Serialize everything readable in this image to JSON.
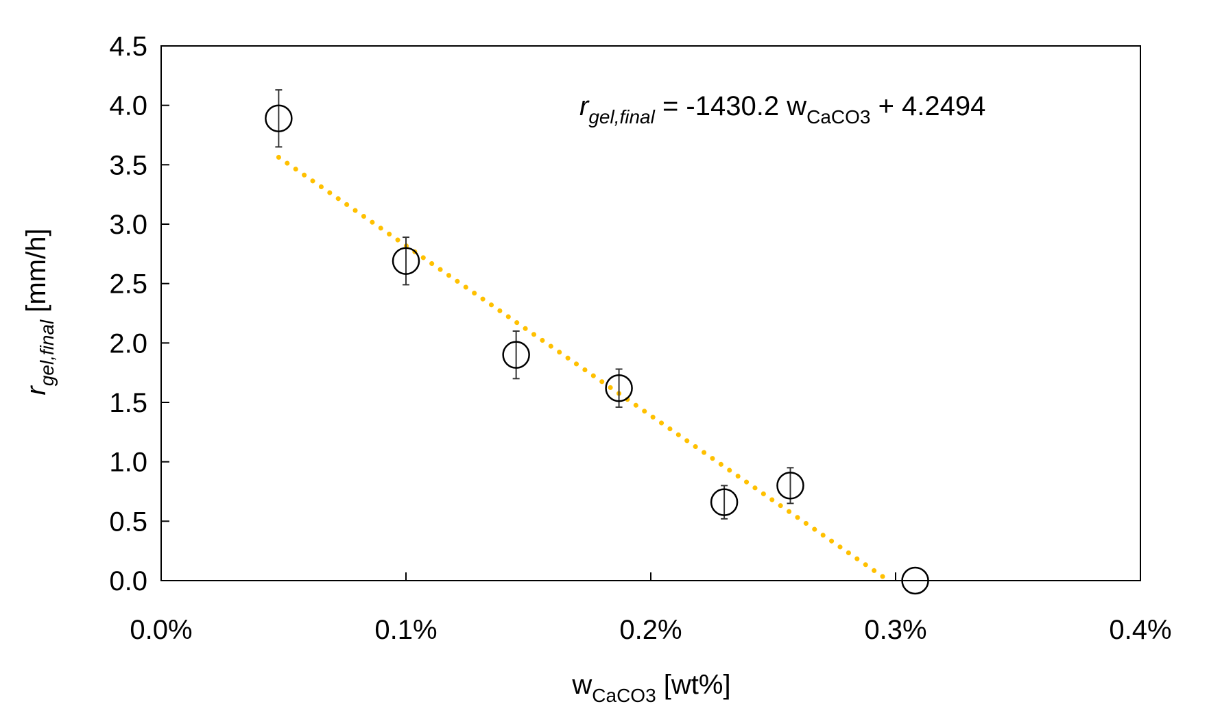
{
  "chart_data": {
    "type": "scatter",
    "xlim": [
      0,
      0.004
    ],
    "ylim": [
      0,
      4.5
    ],
    "x_ticks": [
      0,
      0.001,
      0.002,
      0.003,
      0.004
    ],
    "x_tick_labels": [
      "0.0%",
      "0.1%",
      "0.2%",
      "0.3%",
      "0.4%"
    ],
    "y_ticks": [
      0,
      0.5,
      1.0,
      1.5,
      2.0,
      2.5,
      3.0,
      3.5,
      4.0,
      4.5
    ],
    "y_tick_labels": [
      "0.0",
      "0.5",
      "1.0",
      "1.5",
      "2.0",
      "2.5",
      "3.0",
      "3.5",
      "4.0",
      "4.5"
    ],
    "xlabel": {
      "main": "w",
      "sub": "CaCO3",
      "unit": " [wt%]"
    },
    "ylabel": {
      "main": "r",
      "sub": "gel,final",
      "unit": " [mm/h]"
    },
    "grid": false,
    "legend": "none",
    "points": [
      {
        "x": 0.00048,
        "y": 3.89,
        "err": 0.24
      },
      {
        "x": 0.001,
        "y": 2.69,
        "err": 0.2
      },
      {
        "x": 0.00145,
        "y": 1.9,
        "err": 0.2
      },
      {
        "x": 0.00187,
        "y": 1.62,
        "err": 0.16
      },
      {
        "x": 0.0023,
        "y": 0.66,
        "err": 0.14
      },
      {
        "x": 0.00257,
        "y": 0.8,
        "err": 0.15
      },
      {
        "x": 0.00308,
        "y": 0.0,
        "err": 0.0
      }
    ],
    "trendline": {
      "slope": -1430.2,
      "intercept": 4.2494,
      "x_start": 0.00048,
      "x_end": 0.00297
    },
    "equation": {
      "lhs_main": "r",
      "lhs_sub": "gel,final",
      "middle": " = -1430.2 w",
      "var_sub": "CaCO3",
      "rhs": " + 4.2494"
    },
    "colors": {
      "trendline": "#FFC000",
      "markers": "#000000",
      "axes": "#000000"
    }
  }
}
